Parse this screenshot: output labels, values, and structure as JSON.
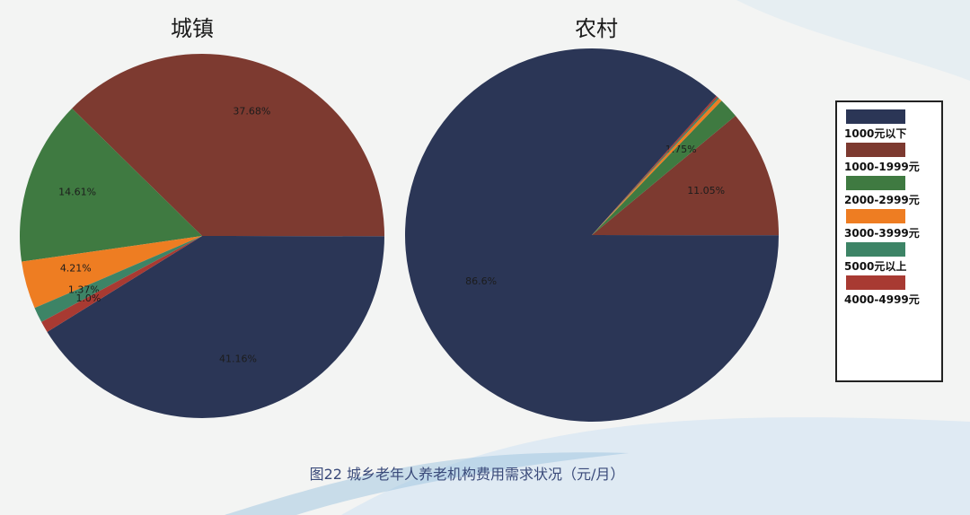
{
  "caption": "图22 城乡老年人养老机构费用需求状况（元/月）",
  "colors": {
    "navy": "#2b3656",
    "brown": "#7d3a30",
    "green": "#3f7a41",
    "orange": "#ee7d22",
    "teal": "#3d8466",
    "red": "#a83a32"
  },
  "legend": [
    {
      "label": "1000元以下",
      "color": "#2b3656"
    },
    {
      "label": "1000-1999元",
      "color": "#7d3a30"
    },
    {
      "label": "2000-2999元",
      "color": "#3f7a41"
    },
    {
      "label": "3000-3999元",
      "color": "#ee7d22"
    },
    {
      "label": "5000元以上",
      "color": "#3d8466"
    },
    {
      "label": "4000-4999元",
      "color": "#a83a32"
    }
  ],
  "chart_data": [
    {
      "type": "pie",
      "title": "城镇",
      "slices": [
        {
          "label": "1000元以下",
          "value": 41.16,
          "text": "41.16%",
          "color": "#2b3656"
        },
        {
          "label": "1000-1999元",
          "value": 37.68,
          "text": "37.68%",
          "color": "#7d3a30"
        },
        {
          "label": "2000-2999元",
          "value": 14.61,
          "text": "14.61%",
          "color": "#3f7a41"
        },
        {
          "label": "3000-3999元",
          "value": 4.21,
          "text": "4.21%",
          "color": "#ee7d22"
        },
        {
          "label": "5000元以上",
          "value": 1.37,
          "text": "1.37%",
          "color": "#3d8466"
        },
        {
          "label": "4000-4999元",
          "value": 1.0,
          "text": "1.0%",
          "color": "#a83a32"
        }
      ]
    },
    {
      "type": "pie",
      "title": "农村",
      "slices": [
        {
          "label": "1000元以下",
          "value": 86.6,
          "text": "86.6%",
          "color": "#2b3656"
        },
        {
          "label": "1000-1999元",
          "value": 11.05,
          "text": "11.05%",
          "color": "#7d3a30"
        },
        {
          "label": "2000-2999元",
          "value": 1.75,
          "text": "1.75%",
          "color": "#3f7a41"
        },
        {
          "label": "3000-3999元",
          "value": 0.3,
          "text": "",
          "color": "#ee7d22"
        },
        {
          "label": "5000元以上",
          "value": 0.15,
          "text": "",
          "color": "#3d8466"
        },
        {
          "label": "4000-4999元",
          "value": 0.15,
          "text": "",
          "color": "#a83a32"
        }
      ]
    }
  ]
}
